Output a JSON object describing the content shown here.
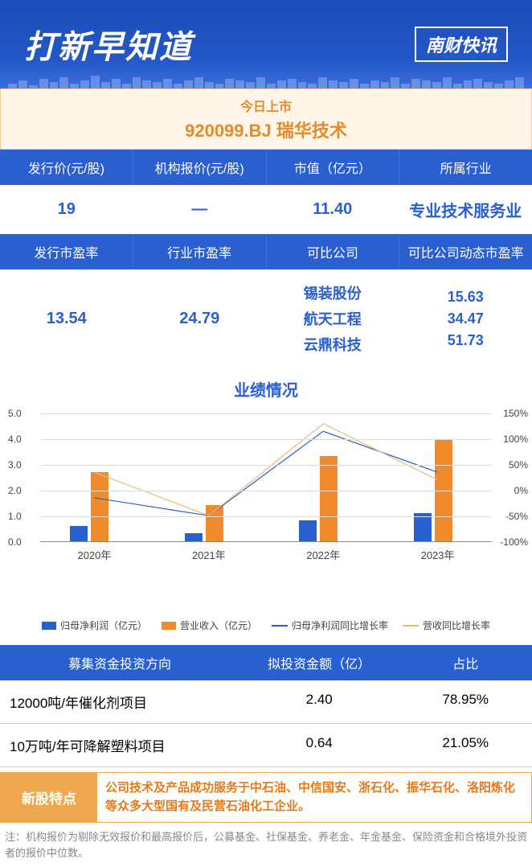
{
  "header": {
    "title": "打新早知道",
    "brand": "南财快讯"
  },
  "today": {
    "label": "今日上市",
    "code": "920099.BJ 瑞华技术"
  },
  "metrics1": {
    "headers": [
      "发行价(元/股)",
      "机构报价(元/股)",
      "市值（亿元）",
      "所属行业"
    ],
    "values": [
      "19",
      "—",
      "11.40",
      "专业技术服务业"
    ]
  },
  "metrics2": {
    "headers": [
      "发行市盈率",
      "行业市盈率",
      "可比公司",
      "可比公司动态市盈率"
    ],
    "v1": "13.54",
    "v2": "24.79",
    "comps": [
      "锡装股份",
      "航天工程",
      "云鼎科技"
    ],
    "pes": [
      "15.63",
      "34.47",
      "51.73"
    ]
  },
  "chart": {
    "title": "业绩情况",
    "type": "bar+line",
    "categories": [
      "2020年",
      "2021年",
      "2022年",
      "2023年"
    ],
    "profit_bars": [
      0.6,
      0.3,
      0.8,
      1.1
    ],
    "revenue_bars": [
      2.7,
      1.4,
      3.3,
      3.95
    ],
    "profit_line_pct": [
      -15,
      -50,
      115,
      35
    ],
    "revenue_line_pct": [
      35,
      -50,
      130,
      20
    ],
    "bar_color_profit": "#2a5fd0",
    "bar_color_revenue": "#f08a2a",
    "line_color_profit": "#2a5fd0",
    "line_color_revenue": "#f0b878",
    "yl_min": 0,
    "yl_max": 5,
    "yl_step": 1,
    "yr_min": -100,
    "yr_max": 150,
    "yr_step": 50,
    "legend": [
      "归母净利润（亿元）",
      "营业收入（亿元）",
      "归母净利润同比增长率",
      "营收同比增长率"
    ]
  },
  "investment": {
    "headers": [
      "募集资金投资方向",
      "拟投资金额（亿）",
      "占比"
    ],
    "rows": [
      [
        "12000吨/年催化剂项目",
        "2.40",
        "78.95%"
      ],
      [
        "10万吨/年可降解塑料项目",
        "0.64",
        "21.05%"
      ]
    ]
  },
  "feature": {
    "label": "新股特点",
    "text": "公司技术及产品成功服务于中石油、中信国安、浙石化、振华石化、洛阳炼化等众多大型国有及民营石油化工企业。"
  },
  "footnote": "注：机构报价为剔除无效报价和最高报价后，公募基金、社保基金、养老金、年金基金、保险资金和合格境外投资者的报价中位数。"
}
